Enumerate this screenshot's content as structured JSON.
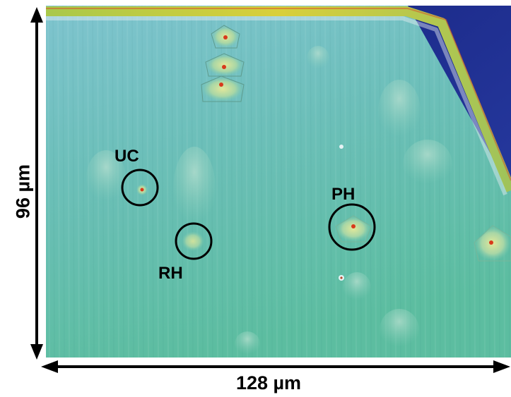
{
  "figure": {
    "x_dimension_label": "128 µm",
    "y_dimension_label": "96 µm"
  },
  "features": [
    {
      "label": "UC"
    },
    {
      "label": "RH"
    },
    {
      "label": "PH"
    }
  ],
  "colors": {
    "surface": "#6fc3b4",
    "background_region": "#1b2b8c",
    "edge_ridge": "#c9d24a",
    "defect_core": "#d83a1c",
    "annotation": "#000000"
  }
}
